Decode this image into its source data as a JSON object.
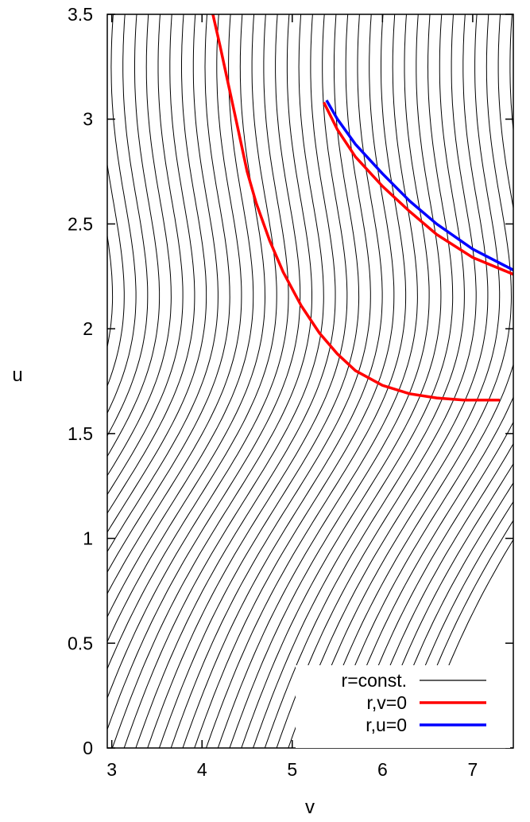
{
  "chart_data": {
    "type": "line",
    "title": "",
    "xlabel": "v",
    "ylabel": "u",
    "xlim": [
      2.95,
      7.45
    ],
    "ylim": [
      0,
      3.5
    ],
    "grid": false,
    "legend_position": "bottom-right",
    "x_ticks": [
      {
        "value": 3,
        "label": "3"
      },
      {
        "value": 4,
        "label": "4"
      },
      {
        "value": 5,
        "label": "5"
      },
      {
        "value": 6,
        "label": "6"
      },
      {
        "value": 7,
        "label": "7"
      }
    ],
    "y_ticks": [
      {
        "value": 0,
        "label": "0"
      },
      {
        "value": 0.5,
        "label": "0.5"
      },
      {
        "value": 1,
        "label": "1"
      },
      {
        "value": 1.5,
        "label": "1.5"
      },
      {
        "value": 2,
        "label": "2"
      },
      {
        "value": 2.5,
        "label": "2.5"
      },
      {
        "value": 3,
        "label": "3"
      },
      {
        "value": 3.5,
        "label": "3.5"
      }
    ],
    "series": [
      {
        "name": "r=const.",
        "color": "#000000",
        "style": "family of contour lines",
        "x": [],
        "y": []
      },
      {
        "name": "r,v=0",
        "color": "#ff0000",
        "x": [
          4.12,
          4.2,
          4.3,
          4.4,
          4.5,
          4.6,
          4.75,
          4.9,
          5.1,
          5.3,
          5.5,
          5.7,
          6.0,
          6.3,
          6.6,
          6.9,
          7.3
        ],
        "y": [
          3.5,
          3.35,
          3.15,
          2.95,
          2.75,
          2.6,
          2.42,
          2.27,
          2.11,
          1.98,
          1.88,
          1.8,
          1.73,
          1.69,
          1.67,
          1.66,
          1.66
        ]
      },
      {
        "name": "r,v=0",
        "color": "#ff0000",
        "x": [
          5.35,
          5.5,
          5.7,
          6.0,
          6.3,
          6.6,
          7.0,
          7.45
        ],
        "y": [
          3.08,
          2.95,
          2.82,
          2.68,
          2.56,
          2.45,
          2.34,
          2.26
        ]
      },
      {
        "name": "r,u=0",
        "color": "#0000ff",
        "x": [
          5.38,
          5.5,
          5.7,
          6.0,
          6.3,
          6.6,
          7.0,
          7.45
        ],
        "y": [
          3.09,
          3.0,
          2.88,
          2.74,
          2.61,
          2.5,
          2.38,
          2.28
        ]
      }
    ],
    "legend": [
      {
        "label": "r=const.",
        "color": "#000000"
      },
      {
        "label": "r,v=0",
        "color": "#ff0000"
      },
      {
        "label": "r,u=0",
        "color": "#0000ff"
      }
    ]
  }
}
